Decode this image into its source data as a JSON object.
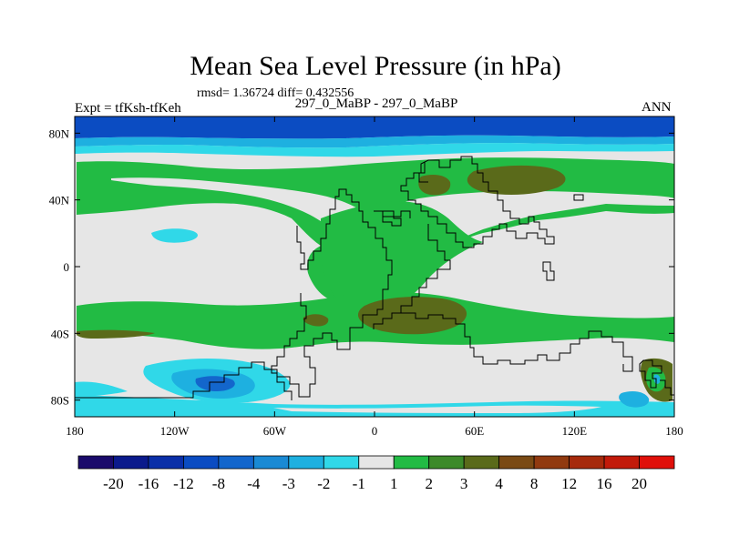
{
  "header": {
    "title": "Mean Sea Level Pressure (in hPa)",
    "stats": "rmsd= 1.36724 diff= 0.432556",
    "experiment": "Expt = tfKsh-tfKeh",
    "comparison": "297_0_MaBP - 297_0_MaBP",
    "season": "ANN"
  },
  "map": {
    "projection": "cylindrical-equidistant",
    "lon_ticks": [
      "180",
      "120W",
      "60W",
      "0",
      "60E",
      "120E",
      "180"
    ],
    "lat_ticks": [
      "80N",
      "40N",
      "0",
      "40S",
      "80S"
    ],
    "lon_range": [
      -180,
      180
    ],
    "lat_range": [
      -90,
      90
    ]
  },
  "colorbar": {
    "labels": [
      "-20",
      "-16",
      "-12",
      "-8",
      "-4",
      "-3",
      "-2",
      "-1",
      "1",
      "2",
      "3",
      "4",
      "8",
      "12",
      "16",
      "20"
    ],
    "colors": [
      "#1a0a6b",
      "#0b1a8c",
      "#0a2fa8",
      "#0b4cc2",
      "#1366cc",
      "#1a8ad4",
      "#1eb0e0",
      "#30d8e8",
      "#e6e6e6",
      "#22bb44",
      "#3d8a2a",
      "#5a6a1a",
      "#7a4a14",
      "#913a10",
      "#a62a0c",
      "#c21a0a",
      "#e0100a"
    ]
  },
  "colors": {
    "neutral": "#e6e6e6",
    "positive_1": "#22bb44",
    "positive_2": "#5a6a1a",
    "negative_1": "#30d8e8",
    "negative_2": "#1eb0e0",
    "negative_3": "#0b4cc2",
    "coast": "#000000"
  }
}
